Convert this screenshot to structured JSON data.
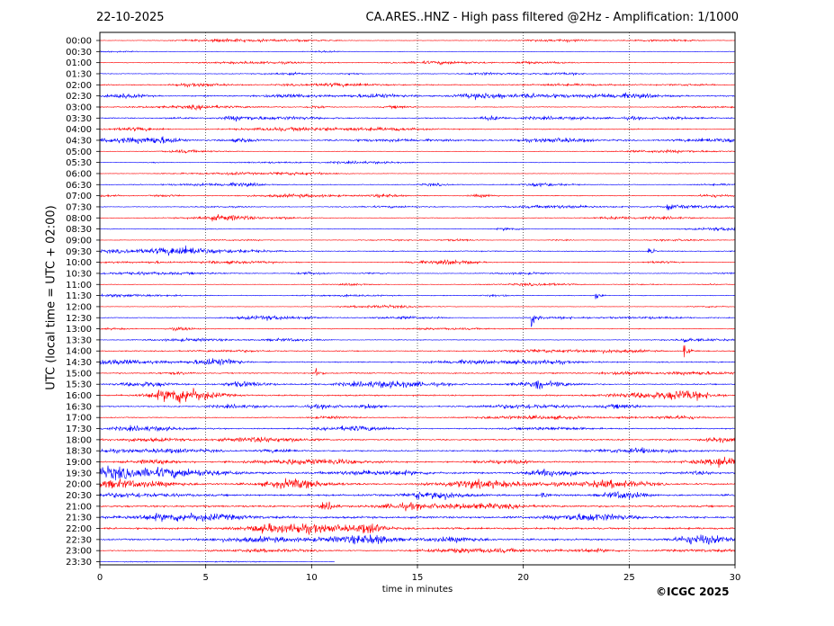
{
  "header": {
    "date": "22-10-2025",
    "title": "CA.ARES..HNZ - High pass filtered @2Hz - Amplification: 1/1000"
  },
  "footer": {
    "copyright": "©ICGC 2025"
  },
  "chart_data": {
    "type": "line",
    "xlabel": "time in minutes",
    "ylabel": "UTC (local time = UTC + 02:00)",
    "xlim": [
      0,
      30
    ],
    "x_ticks": [
      "0",
      "5",
      "10",
      "15",
      "20",
      "25",
      "30"
    ],
    "grid": "vertical dotted lines every 5 minutes",
    "row_labels": [
      "00:00",
      "00:30",
      "01:00",
      "01:30",
      "02:00",
      "02:30",
      "03:00",
      "03:30",
      "04:00",
      "04:30",
      "05:00",
      "05:30",
      "06:00",
      "06:30",
      "07:00",
      "07:30",
      "08:00",
      "08:30",
      "09:00",
      "09:30",
      "10:00",
      "10:30",
      "11:00",
      "11:30",
      "12:00",
      "12:30",
      "13:00",
      "13:30",
      "14:00",
      "14:30",
      "15:00",
      "15:30",
      "16:00",
      "16:30",
      "17:00",
      "17:30",
      "18:00",
      "18:30",
      "19:00",
      "19:30",
      "20:00",
      "20:30",
      "21:00",
      "21:30",
      "22:00",
      "22:30",
      "23:00",
      "23:30"
    ],
    "series_colors": [
      "#ff0000",
      "#0000ff"
    ],
    "amplitude_profile": [
      2,
      2,
      3,
      3,
      4,
      5,
      3,
      5,
      4,
      5,
      2,
      2,
      2,
      3,
      3,
      3,
      3,
      3,
      2,
      4,
      3,
      3,
      2,
      3,
      2,
      3,
      3,
      3,
      4,
      5,
      5,
      5,
      6,
      5,
      4,
      5,
      6,
      6,
      6,
      7,
      7,
      8,
      8,
      9,
      8,
      7,
      4,
      1
    ],
    "events": [
      {
        "row": "07:30",
        "minute": 26.8,
        "strength": 3
      },
      {
        "row": "09:30",
        "minute": 25.9,
        "strength": 3
      },
      {
        "row": "11:30",
        "minute": 23.4,
        "strength": 3
      },
      {
        "row": "12:30",
        "minute": 20.4,
        "strength": 6
      },
      {
        "row": "13:30",
        "minute": 27.6,
        "strength": 3
      },
      {
        "row": "14:00",
        "minute": 27.6,
        "strength": 5
      },
      {
        "row": "15:00",
        "minute": 10.2,
        "strength": 3
      },
      {
        "row": "15:30",
        "minute": 20.6,
        "strength": 3
      },
      {
        "row": "20:30",
        "minute": 15.0,
        "strength": 3
      },
      {
        "row": "20:30",
        "minute": 20.9,
        "strength": 3
      }
    ]
  }
}
